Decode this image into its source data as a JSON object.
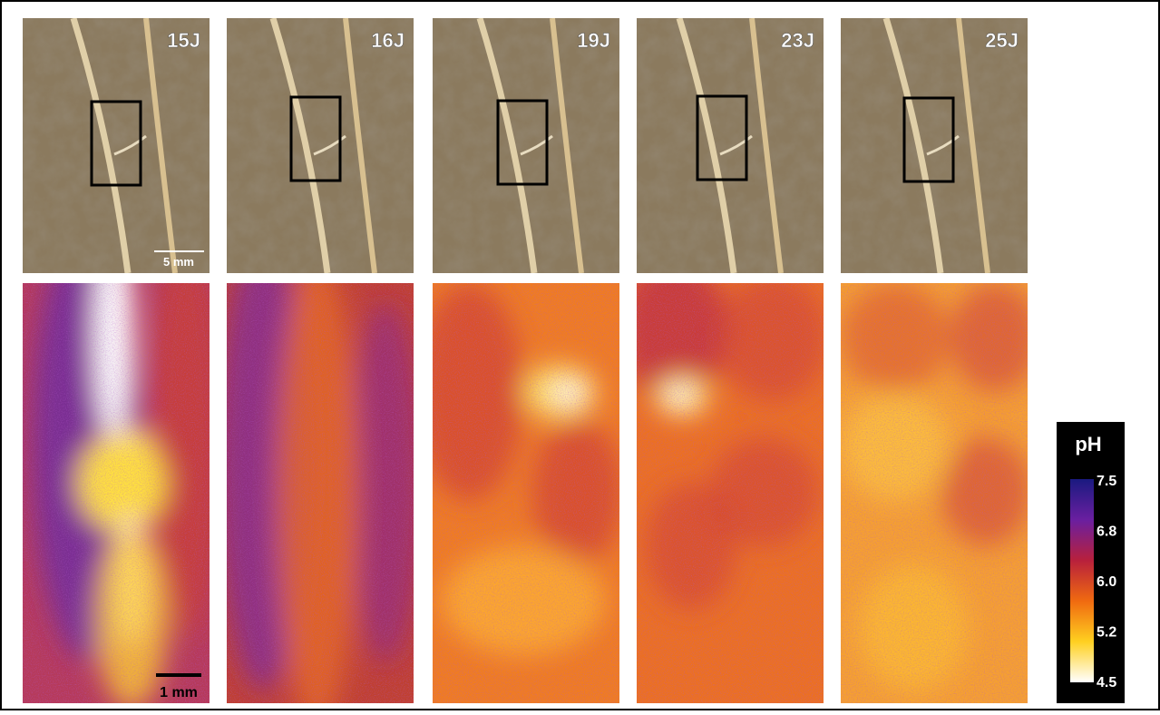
{
  "panels": [
    {
      "label": "15J"
    },
    {
      "label": "16J"
    },
    {
      "label": "19J"
    },
    {
      "label": "23J"
    },
    {
      "label": "25J"
    }
  ],
  "scale_bars": {
    "photo": "5 mm",
    "ph_map": "1 mm"
  },
  "colorbar": {
    "title": "pH",
    "ticks": [
      "7.5",
      "6.8",
      "6.0",
      "5.2",
      "4.5"
    ]
  }
}
